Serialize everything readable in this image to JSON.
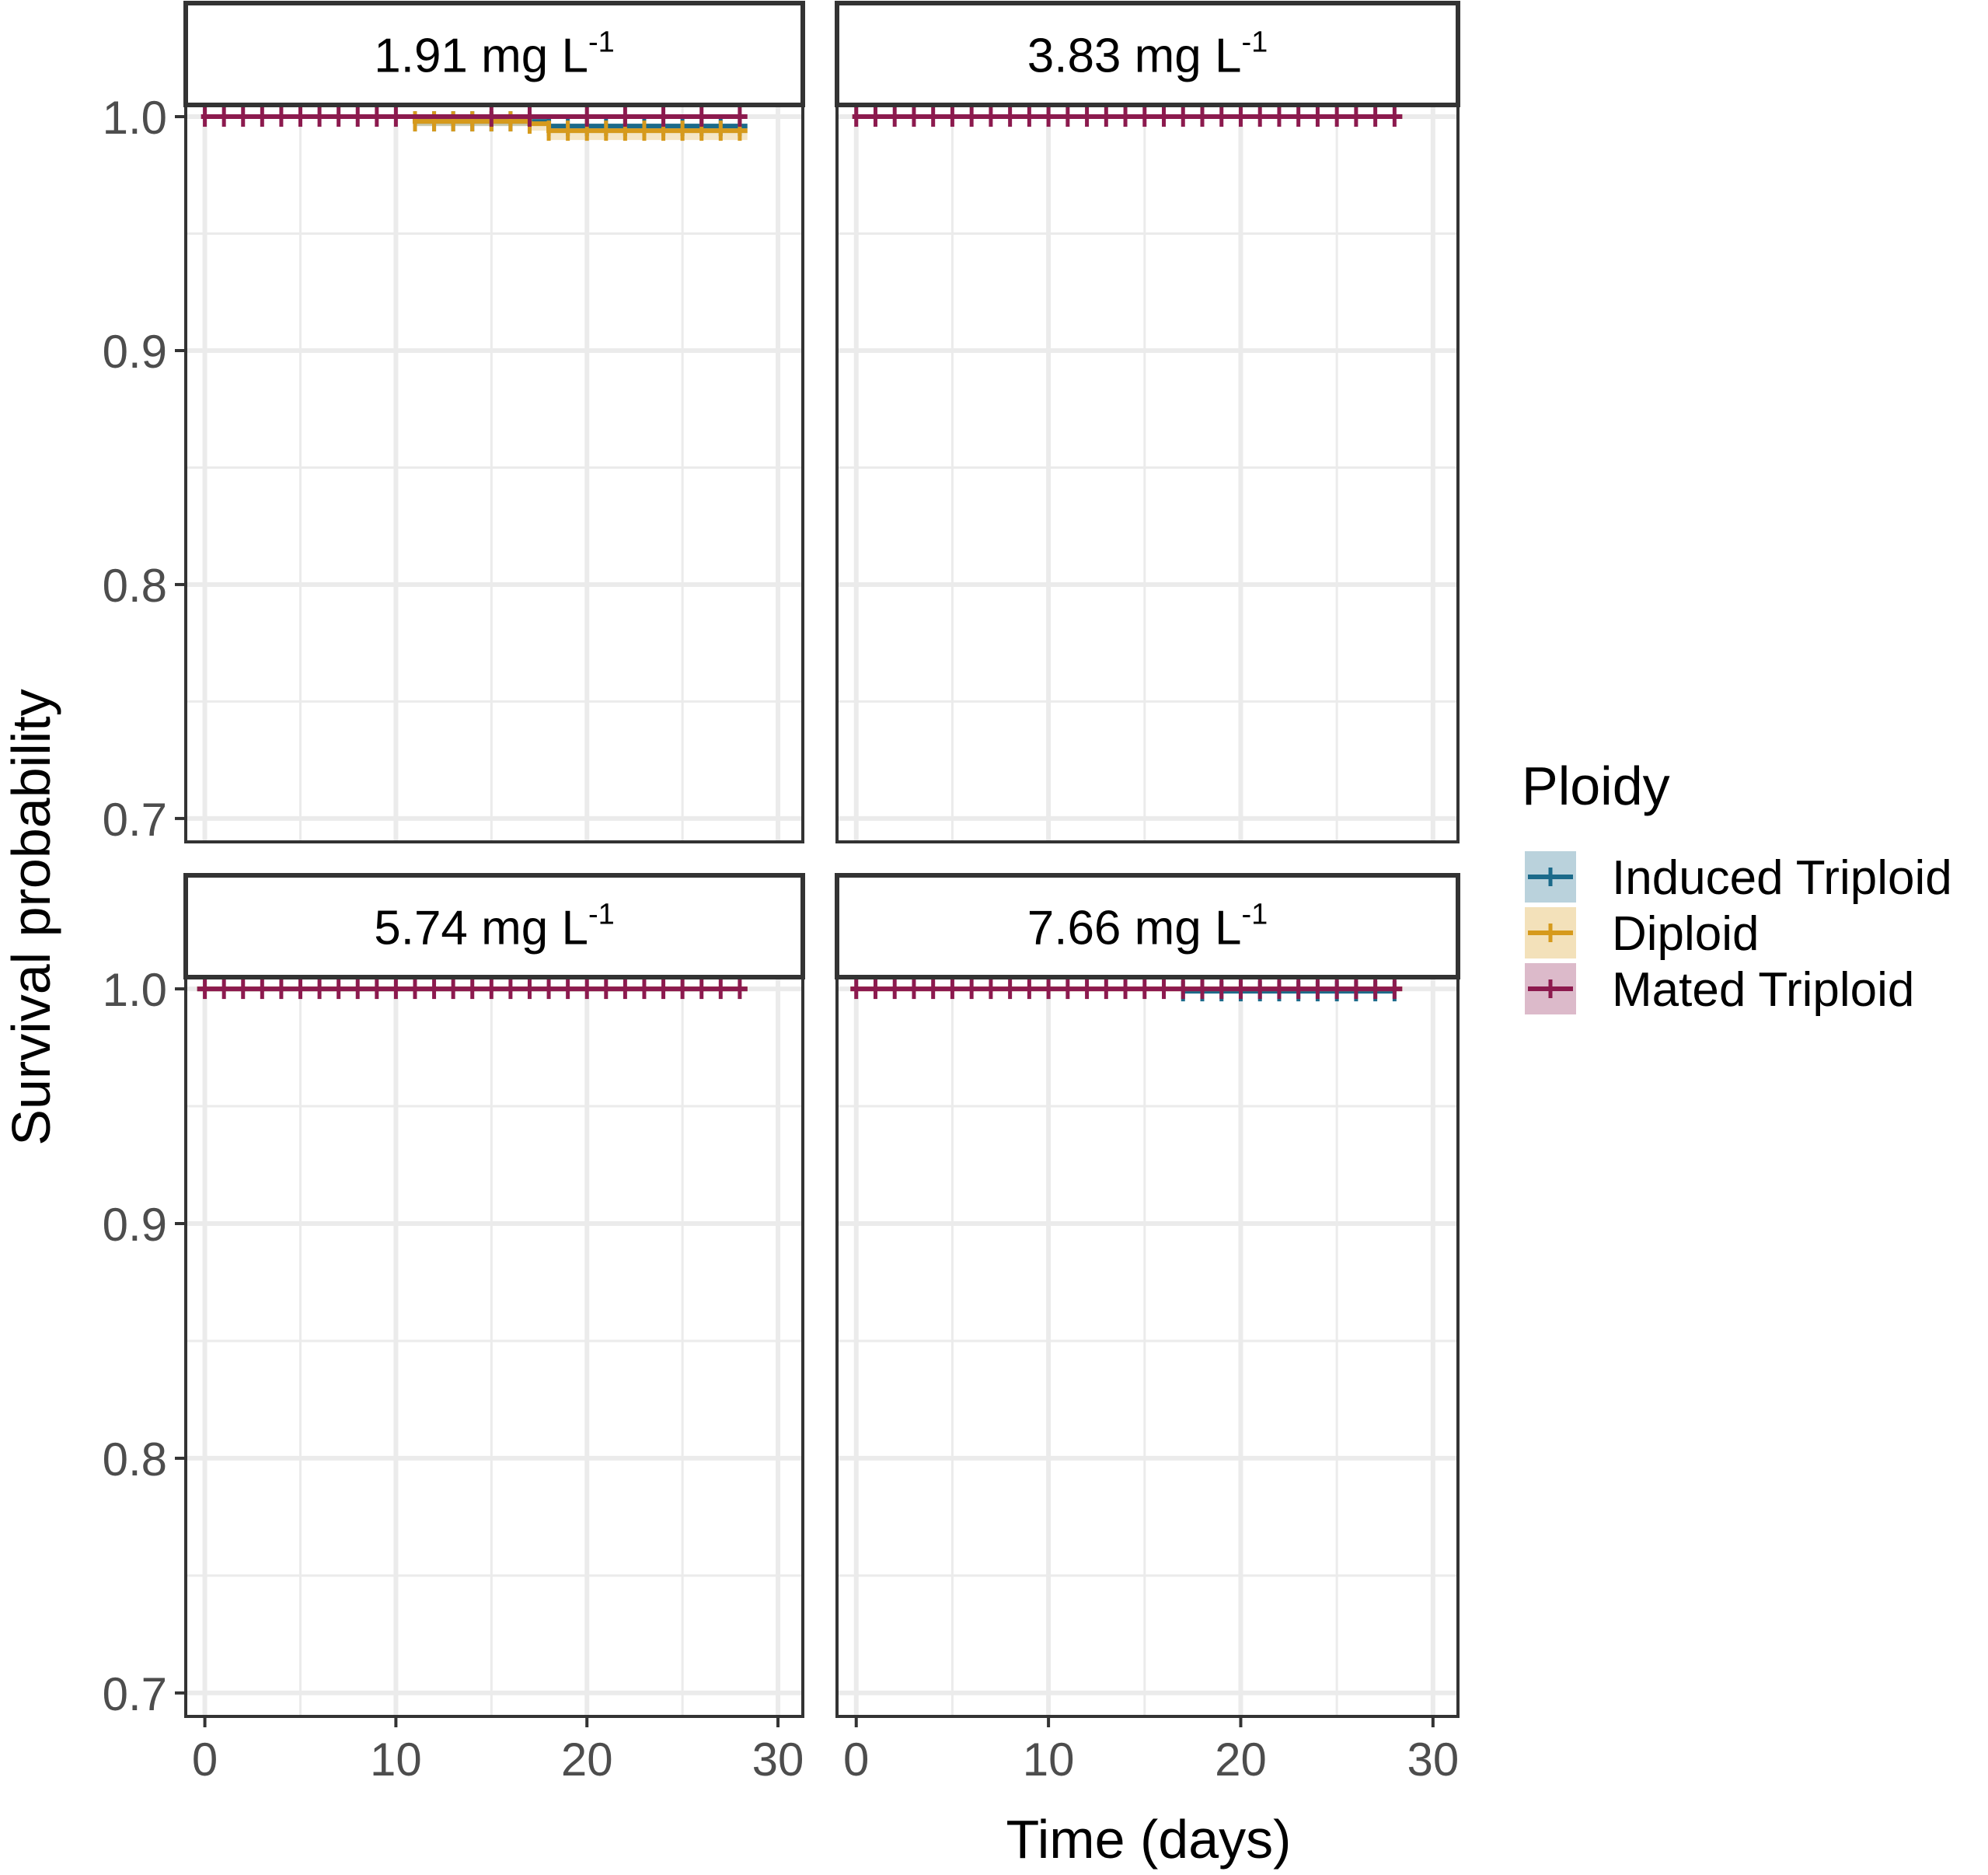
{
  "colors": {
    "Induced Triploid": "#1b6a8a",
    "Diploid": "#d69a1c",
    "Mated Triploid": "#8c1a4e",
    "strip_fill": "#ffffff",
    "panel_border": "#333333",
    "grid": "#ebebeb",
    "axis_text": "#4d4d4d",
    "title_text": "#000000"
  },
  "chart_data": {
    "type": "line",
    "subtype": "kaplan-meier survival curves, faceted 2x2",
    "xlabel": "Time (days)",
    "ylabel": "Survival probability",
    "xlim": [
      -1,
      31.3
    ],
    "ylim": [
      0.69,
      1.005
    ],
    "x_ticks": [
      0,
      10,
      20,
      30
    ],
    "y_ticks": [
      0.7,
      0.8,
      0.9,
      1.0
    ],
    "y_tick_labels": [
      "0.7",
      "0.8",
      "0.9",
      "1.0"
    ],
    "x_minor_ticks": [
      5,
      15,
      25
    ],
    "y_minor_ticks": [
      0.75,
      0.85,
      0.95
    ],
    "grid": true,
    "legend_position": "right",
    "legend": {
      "title": "Ploidy",
      "entries": [
        "Induced Triploid",
        "Diploid",
        "Mated Triploid"
      ]
    },
    "panels": [
      {
        "strip_main": "1.91 mg L",
        "strip_sup": "-1",
        "series": [
          {
            "name": "Induced Triploid",
            "x": [
              0,
              11,
              18,
              28.4
            ],
            "y": [
              1.0,
              0.998,
              0.996,
              0.996
            ],
            "lower": [
              1.0,
              0.996,
              0.993,
              0.993
            ],
            "censor_x": [
              11,
              12,
              13,
              14,
              15,
              16,
              17,
              18,
              19,
              20,
              21,
              22,
              23,
              24,
              25,
              26,
              27,
              28
            ]
          },
          {
            "name": "Diploid",
            "x": [
              0,
              11,
              17,
              18,
              28.4
            ],
            "y": [
              1.0,
              0.998,
              0.997,
              0.994,
              0.994
            ],
            "lower": [
              1.0,
              0.996,
              0.994,
              0.99,
              0.99
            ],
            "censor_x": [
              11,
              12,
              13,
              14,
              15,
              16,
              17,
              18,
              19,
              20,
              21,
              22,
              23,
              24,
              25,
              26,
              27,
              28
            ]
          },
          {
            "name": "Mated Triploid",
            "x": [
              -0.2,
              28.4
            ],
            "y": [
              1.0,
              1.0
            ],
            "lower": [
              1.0,
              1.0
            ],
            "censor_x": [
              0,
              1,
              2,
              3,
              4,
              5,
              6,
              7,
              8,
              9,
              10,
              15,
              17,
              20,
              22,
              24,
              26,
              28
            ]
          }
        ]
      },
      {
        "strip_main": "3.83 mg L",
        "strip_sup": "-1",
        "series": [
          {
            "name": "Induced Triploid",
            "x": [
              -0.2,
              28.4
            ],
            "y": [
              1.0,
              1.0
            ],
            "lower": [
              1.0,
              1.0
            ],
            "censor_x": []
          },
          {
            "name": "Diploid",
            "x": [
              -0.2,
              28.4
            ],
            "y": [
              1.0,
              1.0
            ],
            "lower": [
              1.0,
              1.0
            ],
            "censor_x": []
          },
          {
            "name": "Mated Triploid",
            "x": [
              -0.2,
              28.4
            ],
            "y": [
              1.0,
              1.0
            ],
            "lower": [
              1.0,
              1.0
            ],
            "censor_x": [
              0,
              1,
              2,
              3,
              4,
              5,
              6,
              7,
              8,
              9,
              10,
              11,
              12,
              13,
              14,
              15,
              16,
              17,
              18,
              19,
              20,
              21,
              22,
              23,
              24,
              25,
              26,
              27,
              28
            ]
          }
        ]
      },
      {
        "strip_main": "5.74 mg L",
        "strip_sup": "-1",
        "series": [
          {
            "name": "Induced Triploid",
            "x": [
              -0.4,
              28.4
            ],
            "y": [
              1.0,
              1.0
            ],
            "lower": [
              1.0,
              1.0
            ],
            "censor_x": []
          },
          {
            "name": "Diploid",
            "x": [
              -0.4,
              28.4
            ],
            "y": [
              1.0,
              1.0
            ],
            "lower": [
              1.0,
              1.0
            ],
            "censor_x": []
          },
          {
            "name": "Mated Triploid",
            "x": [
              -0.4,
              28.4
            ],
            "y": [
              1.0,
              1.0
            ],
            "lower": [
              1.0,
              1.0
            ],
            "censor_x": [
              0,
              1,
              2,
              3,
              4,
              5,
              6,
              7,
              8,
              9,
              10,
              11,
              12,
              13,
              14,
              15,
              16,
              17,
              18,
              19,
              20,
              21,
              22,
              23,
              24,
              25,
              26,
              27,
              28
            ]
          }
        ]
      },
      {
        "strip_main": "7.66 mg L",
        "strip_sup": "-1",
        "series": [
          {
            "name": "Induced Triploid",
            "x": [
              17,
              28
            ],
            "y": [
              0.999,
              0.999
            ],
            "lower": [
              0.999,
              0.999
            ],
            "censor_x": [
              17,
              18,
              19,
              20,
              21,
              22,
              23,
              24,
              25,
              26,
              27,
              28
            ]
          },
          {
            "name": "Diploid",
            "x": [
              -0.3,
              28.4
            ],
            "y": [
              1.0,
              1.0
            ],
            "lower": [
              1.0,
              1.0
            ],
            "censor_x": []
          },
          {
            "name": "Mated Triploid",
            "x": [
              -0.3,
              28.4
            ],
            "y": [
              1.0,
              1.0
            ],
            "lower": [
              1.0,
              1.0
            ],
            "censor_x": [
              0,
              1,
              2,
              3,
              4,
              5,
              6,
              7,
              8,
              9,
              10,
              11,
              12,
              13,
              14,
              15,
              16,
              17,
              18,
              19,
              20,
              21,
              22,
              23,
              24,
              25,
              26,
              27,
              28
            ]
          }
        ]
      }
    ]
  }
}
